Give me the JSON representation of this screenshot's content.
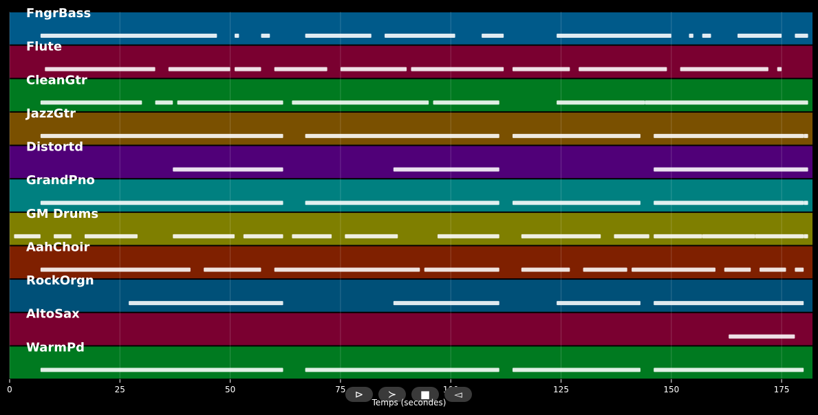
{
  "chart_data": {
    "type": "piano-roll",
    "xlabel": "Temps (secondes)",
    "xlim": [
      0,
      182
    ],
    "xticks": [
      0,
      25,
      50,
      75,
      100,
      125,
      150,
      175
    ],
    "grid": true,
    "tracks": [
      {
        "name": "FngrBass",
        "color": "#005a8a",
        "segments": [
          [
            7,
            47
          ],
          [
            51,
            52
          ],
          [
            57,
            59
          ],
          [
            67,
            82
          ],
          [
            85,
            101
          ],
          [
            107,
            112
          ],
          [
            124,
            150
          ],
          [
            154,
            155
          ],
          [
            157,
            159
          ],
          [
            165,
            175
          ],
          [
            178,
            181
          ]
        ]
      },
      {
        "name": "Flute",
        "color": "#7a0030",
        "segments": [
          [
            8,
            33
          ],
          [
            36,
            50
          ],
          [
            51,
            57
          ],
          [
            60,
            72
          ],
          [
            75,
            90
          ],
          [
            91,
            112
          ],
          [
            114,
            127
          ],
          [
            129,
            149
          ],
          [
            152,
            172
          ],
          [
            174,
            175
          ]
        ]
      },
      {
        "name": "CleanGtr",
        "color": "#007a20",
        "segments": [
          [
            7,
            30
          ],
          [
            33,
            37
          ],
          [
            38,
            62
          ],
          [
            64,
            95
          ],
          [
            96,
            111
          ],
          [
            124,
            144
          ],
          [
            144,
            181
          ]
        ]
      },
      {
        "name": "JazzGtr",
        "color": "#7a5000",
        "segments": [
          [
            7,
            62
          ],
          [
            67,
            111
          ],
          [
            114,
            143
          ],
          [
            146,
            180
          ],
          [
            180,
            181
          ]
        ]
      },
      {
        "name": "Distortd",
        "color": "#500078",
        "segments": [
          [
            37,
            62
          ],
          [
            87,
            111
          ],
          [
            146,
            181
          ]
        ]
      },
      {
        "name": "GrandPno",
        "color": "#008080",
        "segments": [
          [
            7,
            62
          ],
          [
            67,
            111
          ],
          [
            114,
            143
          ],
          [
            146,
            180
          ],
          [
            180,
            181
          ]
        ]
      },
      {
        "name": "GM Drums",
        "color": "#7f7f00",
        "segments": [
          [
            1,
            7
          ],
          [
            10,
            14
          ],
          [
            17,
            29
          ],
          [
            37,
            51
          ],
          [
            53,
            62
          ],
          [
            64,
            73
          ],
          [
            76,
            88
          ],
          [
            97,
            111
          ],
          [
            116,
            134
          ],
          [
            137,
            145
          ],
          [
            146,
            157
          ],
          [
            157,
            169
          ],
          [
            169,
            180
          ],
          [
            180,
            181
          ]
        ]
      },
      {
        "name": "AahChoir",
        "color": "#7f2000",
        "segments": [
          [
            7,
            41
          ],
          [
            44,
            57
          ],
          [
            60,
            93
          ],
          [
            94,
            111
          ],
          [
            116,
            127
          ],
          [
            130,
            140
          ],
          [
            141,
            160
          ],
          [
            162,
            168
          ],
          [
            170,
            176
          ],
          [
            178,
            180
          ]
        ]
      },
      {
        "name": "RockOrgn",
        "color": "#005078",
        "segments": [
          [
            27,
            62
          ],
          [
            87,
            111
          ],
          [
            124,
            143
          ],
          [
            146,
            180
          ]
        ]
      },
      {
        "name": "AltoSax",
        "color": "#7a0030",
        "segments": [
          [
            163,
            178
          ]
        ]
      },
      {
        "name": "WarmPd",
        "color": "#007a20",
        "segments": [
          [
            7,
            62
          ],
          [
            67,
            111
          ],
          [
            114,
            143
          ],
          [
            146,
            180
          ]
        ]
      }
    ]
  },
  "controls": [
    {
      "name": "play-button",
      "glyph": "⊳"
    },
    {
      "name": "forward-button",
      "glyph": "≻"
    },
    {
      "name": "stop-button",
      "glyph": "■"
    },
    {
      "name": "back-button",
      "glyph": "◅"
    }
  ]
}
